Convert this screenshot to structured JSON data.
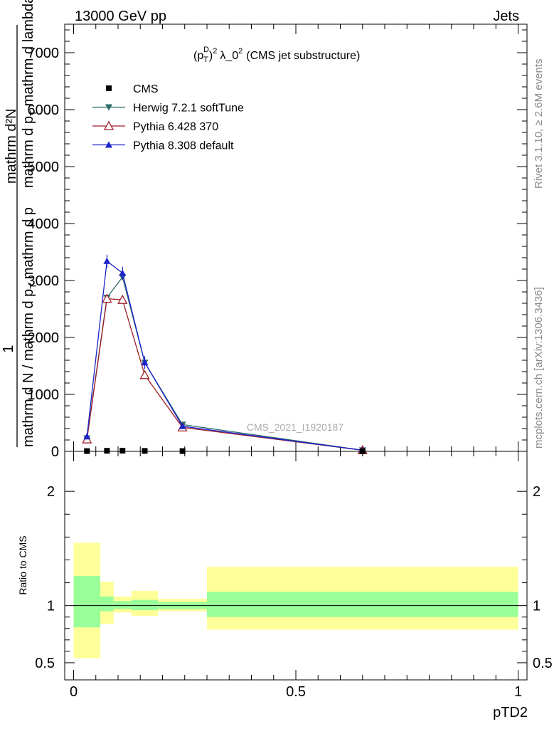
{
  "header": {
    "left": "13000 GeV pp",
    "right": "Jets"
  },
  "plot_title": {
    "main": "(p",
    "sup_D": "D",
    "sub_T": "T",
    "sup_2": "2",
    "rest": "λ_0",
    "sup2b": "2",
    "suffix": "(CMS jet substructure)"
  },
  "side_labels": {
    "rivet": "Rivet 3.1.10, ≥ 2.6M events",
    "mcplots": "mcplots.cern.ch [arXiv:1306.3436]"
  },
  "watermark": "CMS_2021_I1920187",
  "chart_data": [
    {
      "type": "line",
      "panel": "main",
      "ylabel_numerator": "1",
      "ylabel_top": "mathrm d²N",
      "ylabel_top2": "mathrm d p",
      "ylabel_top3": "T",
      "ylabel_top4": " mathrm d lambda",
      "ylabel_bottom": "mathrm d N / mathrm d p",
      "ylabel_bottom2": "T",
      "ylabel_bottom3": " mathrm d p",
      "ylim": [
        0,
        7500
      ],
      "xlim": [
        -0.02,
        1.02
      ],
      "yticks": [
        0,
        1000,
        2000,
        3000,
        4000,
        5000,
        6000,
        7000
      ],
      "ytick_labels": [
        "0",
        "1000",
        "2000",
        "3000",
        "4000",
        "5000",
        "6000",
        "7000"
      ],
      "legend": [
        {
          "name": "CMS",
          "marker": "square",
          "color": "#000000"
        },
        {
          "name": "Herwig 7.2.1 softTune",
          "marker": "triangle-down",
          "color": "#2e6b6b"
        },
        {
          "name": "Pythia 6.428 370",
          "marker": "triangle-open",
          "color": "#a01e2a"
        },
        {
          "name": "Pythia 8.308 default",
          "marker": "triangle-up",
          "color": "#1a22c8"
        }
      ],
      "series": [
        {
          "name": "CMS",
          "x": [
            0.03,
            0.075,
            0.11,
            0.16,
            0.245,
            0.65
          ],
          "values": [
            5,
            10,
            12,
            8,
            5,
            2
          ]
        },
        {
          "name": "Herwig 7.2.1 softTune",
          "x": [
            0.03,
            0.075,
            0.11,
            0.16,
            0.245,
            0.65
          ],
          "values": [
            230,
            2700,
            3060,
            1560,
            470,
            20
          ]
        },
        {
          "name": "Pythia 6.428 370",
          "x": [
            0.03,
            0.075,
            0.11,
            0.16,
            0.245,
            0.65
          ],
          "values": [
            210,
            2680,
            2660,
            1340,
            420,
            20
          ]
        },
        {
          "name": "Pythia 8.308 default",
          "x": [
            0.03,
            0.075,
            0.11,
            0.16,
            0.245,
            0.65
          ],
          "values": [
            260,
            3340,
            3130,
            1560,
            440,
            20
          ]
        }
      ]
    },
    {
      "type": "area",
      "panel": "ratio",
      "ylabel": "Ratio to CMS",
      "xlabel": "pTD2",
      "ylim": [
        0.35,
        2.35
      ],
      "xlim": [
        -0.02,
        1.02
      ],
      "yticks": [
        0.5,
        1,
        2
      ],
      "ytick_labels": [
        "0.5",
        "1",
        "2"
      ],
      "xticks": [
        0,
        0.5,
        1
      ],
      "xtick_labels": [
        "0",
        "0.5",
        "1"
      ],
      "bins": [
        {
          "x0": 0.0,
          "x1": 0.06,
          "green": [
            0.81,
            1.26
          ],
          "yellow": [
            0.54,
            1.55
          ]
        },
        {
          "x0": 0.06,
          "x1": 0.09,
          "green": [
            0.95,
            1.08
          ],
          "yellow": [
            0.84,
            1.21
          ]
        },
        {
          "x0": 0.09,
          "x1": 0.13,
          "green": [
            0.97,
            1.04
          ],
          "yellow": [
            0.94,
            1.08
          ]
        },
        {
          "x0": 0.13,
          "x1": 0.19,
          "green": [
            0.96,
            1.05
          ],
          "yellow": [
            0.91,
            1.13
          ]
        },
        {
          "x0": 0.19,
          "x1": 0.3,
          "green": [
            0.97,
            1.03
          ],
          "yellow": [
            0.95,
            1.06
          ]
        },
        {
          "x0": 0.3,
          "x1": 1.0,
          "green": [
            0.9,
            1.12
          ],
          "yellow": [
            0.79,
            1.34
          ]
        }
      ]
    }
  ]
}
